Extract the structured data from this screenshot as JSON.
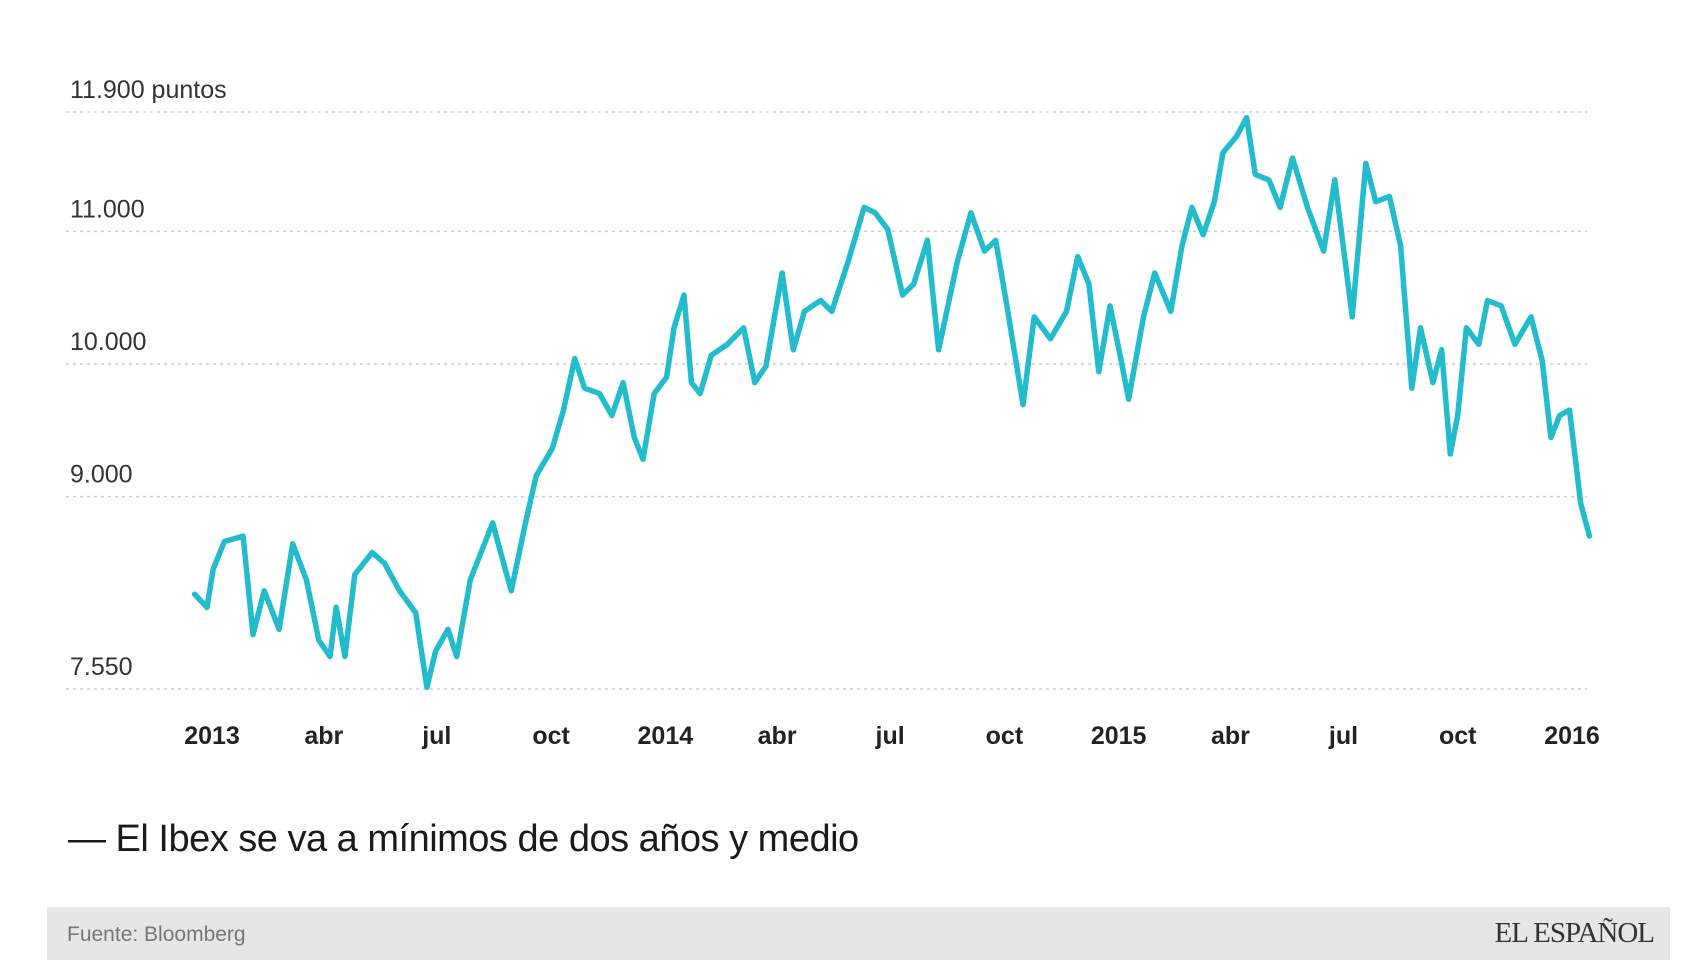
{
  "chart_data": {
    "type": "line",
    "title": "— El Ibex se va a mínimos de dos años y medio",
    "y_unit_label": "11.900 puntos",
    "yticks": [
      {
        "value": 11900,
        "label": "11.900 puntos"
      },
      {
        "value": 11000,
        "label": "11.000"
      },
      {
        "value": 10000,
        "label": "10.000"
      },
      {
        "value": 9000,
        "label": "9.000"
      },
      {
        "value": 7550,
        "label": "7.550"
      }
    ],
    "ylim": [
      7550,
      11900
    ],
    "xlim": [
      "2012-12-18",
      "2016-01-15"
    ],
    "xticks": [
      {
        "date": "2013-01-01",
        "label": "2013"
      },
      {
        "date": "2013-04-01",
        "label": "abr"
      },
      {
        "date": "2013-07-01",
        "label": "jul"
      },
      {
        "date": "2013-10-01",
        "label": "oct"
      },
      {
        "date": "2014-01-01",
        "label": "2014"
      },
      {
        "date": "2014-04-01",
        "label": "abr"
      },
      {
        "date": "2014-07-01",
        "label": "jul"
      },
      {
        "date": "2014-10-01",
        "label": "oct"
      },
      {
        "date": "2015-01-01",
        "label": "2015"
      },
      {
        "date": "2015-04-01",
        "label": "abr"
      },
      {
        "date": "2015-07-01",
        "label": "jul"
      },
      {
        "date": "2015-10-01",
        "label": "oct"
      },
      {
        "date": "2016-01-01",
        "label": "2016"
      }
    ],
    "grid": "horizontal dotted",
    "line_color": "#22bccc",
    "series": [
      {
        "points": [
          [
            "2012-12-18",
            8265
          ],
          [
            "2012-12-28",
            8166
          ],
          [
            "2013-01-02",
            8455
          ],
          [
            "2013-01-11",
            8662
          ],
          [
            "2013-01-26",
            8703
          ],
          [
            "2013-02-03",
            7960
          ],
          [
            "2013-02-12",
            8290
          ],
          [
            "2013-02-24",
            8000
          ],
          [
            "2013-03-07",
            8645
          ],
          [
            "2013-03-18",
            8373
          ],
          [
            "2013-03-28",
            7918
          ],
          [
            "2013-04-06",
            7795
          ],
          [
            "2013-04-11",
            8166
          ],
          [
            "2013-04-18",
            7795
          ],
          [
            "2013-04-26",
            8414
          ],
          [
            "2013-05-10",
            8579
          ],
          [
            "2013-05-20",
            8497
          ],
          [
            "2013-06-01",
            8290
          ],
          [
            "2013-06-14",
            8125
          ],
          [
            "2013-06-23",
            7563
          ],
          [
            "2013-06-30",
            7836
          ],
          [
            "2013-07-10",
            8000
          ],
          [
            "2013-07-17",
            7795
          ],
          [
            "2013-07-28",
            8373
          ],
          [
            "2013-08-15",
            8802
          ],
          [
            "2013-08-25",
            8455
          ],
          [
            "2013-08-30",
            8290
          ],
          [
            "2013-09-10",
            8786
          ],
          [
            "2013-09-19",
            9157
          ],
          [
            "2013-10-02",
            9364
          ],
          [
            "2013-10-11",
            9653
          ],
          [
            "2013-10-20",
            10041
          ],
          [
            "2013-10-28",
            9818
          ],
          [
            "2013-11-09",
            9777
          ],
          [
            "2013-11-19",
            9612
          ],
          [
            "2013-11-28",
            9860
          ],
          [
            "2013-12-07",
            9446
          ],
          [
            "2013-12-14",
            9281
          ],
          [
            "2013-12-23",
            9777
          ],
          [
            "2014-01-02",
            9901
          ],
          [
            "2014-01-08",
            10273
          ],
          [
            "2014-01-16",
            10520
          ],
          [
            "2014-01-22",
            9860
          ],
          [
            "2014-01-29",
            9777
          ],
          [
            "2014-02-07",
            10066
          ],
          [
            "2014-02-20",
            10149
          ],
          [
            "2014-03-05",
            10273
          ],
          [
            "2014-03-14",
            9860
          ],
          [
            "2014-03-23",
            9983
          ],
          [
            "2014-04-05",
            10686
          ],
          [
            "2014-04-14",
            10107
          ],
          [
            "2014-04-23",
            10397
          ],
          [
            "2014-05-06",
            10479
          ],
          [
            "2014-05-15",
            10397
          ],
          [
            "2014-05-28",
            10768
          ],
          [
            "2014-06-10",
            11181
          ],
          [
            "2014-06-19",
            11140
          ],
          [
            "2014-06-29",
            11016
          ],
          [
            "2014-07-11",
            10520
          ],
          [
            "2014-07-20",
            10603
          ],
          [
            "2014-07-31",
            10933
          ],
          [
            "2014-08-09",
            10107
          ],
          [
            "2014-08-24",
            10768
          ],
          [
            "2014-09-04",
            11140
          ],
          [
            "2014-09-15",
            10851
          ],
          [
            "2014-09-24",
            10933
          ],
          [
            "2014-10-03",
            10438
          ],
          [
            "2014-10-16",
            9694
          ],
          [
            "2014-10-25",
            10355
          ],
          [
            "2014-11-07",
            10190
          ],
          [
            "2014-11-20",
            10397
          ],
          [
            "2014-11-29",
            10810
          ],
          [
            "2014-12-08",
            10603
          ],
          [
            "2014-12-16",
            9942
          ],
          [
            "2014-12-25",
            10438
          ],
          [
            "2015-01-03",
            10025
          ],
          [
            "2015-01-09",
            9735
          ],
          [
            "2015-01-21",
            10355
          ],
          [
            "2015-01-30",
            10686
          ],
          [
            "2015-02-12",
            10397
          ],
          [
            "2015-02-21",
            10892
          ],
          [
            "2015-03-01",
            11181
          ],
          [
            "2015-03-10",
            10975
          ],
          [
            "2015-03-19",
            11223
          ],
          [
            "2015-03-26",
            11594
          ],
          [
            "2015-04-06",
            11718
          ],
          [
            "2015-04-14",
            11858
          ],
          [
            "2015-04-21",
            11429
          ],
          [
            "2015-05-02",
            11388
          ],
          [
            "2015-05-11",
            11181
          ],
          [
            "2015-05-21",
            11553
          ],
          [
            "2015-06-02",
            11181
          ],
          [
            "2015-06-15",
            10851
          ],
          [
            "2015-06-24",
            11388
          ],
          [
            "2015-07-08",
            10355
          ],
          [
            "2015-07-19",
            11512
          ],
          [
            "2015-07-27",
            11223
          ],
          [
            "2015-08-07",
            11264
          ],
          [
            "2015-08-16",
            10892
          ],
          [
            "2015-08-25",
            9818
          ],
          [
            "2015-09-01",
            10273
          ],
          [
            "2015-09-11",
            9860
          ],
          [
            "2015-09-18",
            10107
          ],
          [
            "2015-09-25",
            9322
          ],
          [
            "2015-10-01",
            9612
          ],
          [
            "2015-10-08",
            10273
          ],
          [
            "2015-10-18",
            10149
          ],
          [
            "2015-10-25",
            10479
          ],
          [
            "2015-11-05",
            10438
          ],
          [
            "2015-11-16",
            10149
          ],
          [
            "2015-11-29",
            10355
          ],
          [
            "2015-12-08",
            10025
          ],
          [
            "2015-12-15",
            9446
          ],
          [
            "2015-12-22",
            9612
          ],
          [
            "2015-12-30",
            9653
          ],
          [
            "2016-01-08",
            8950
          ],
          [
            "2016-01-15",
            8703
          ]
        ]
      }
    ]
  },
  "footer": {
    "source": "Fuente: Bloomberg",
    "brand": "EL ESPAÑOL",
    "background": "#e6e6e6"
  }
}
